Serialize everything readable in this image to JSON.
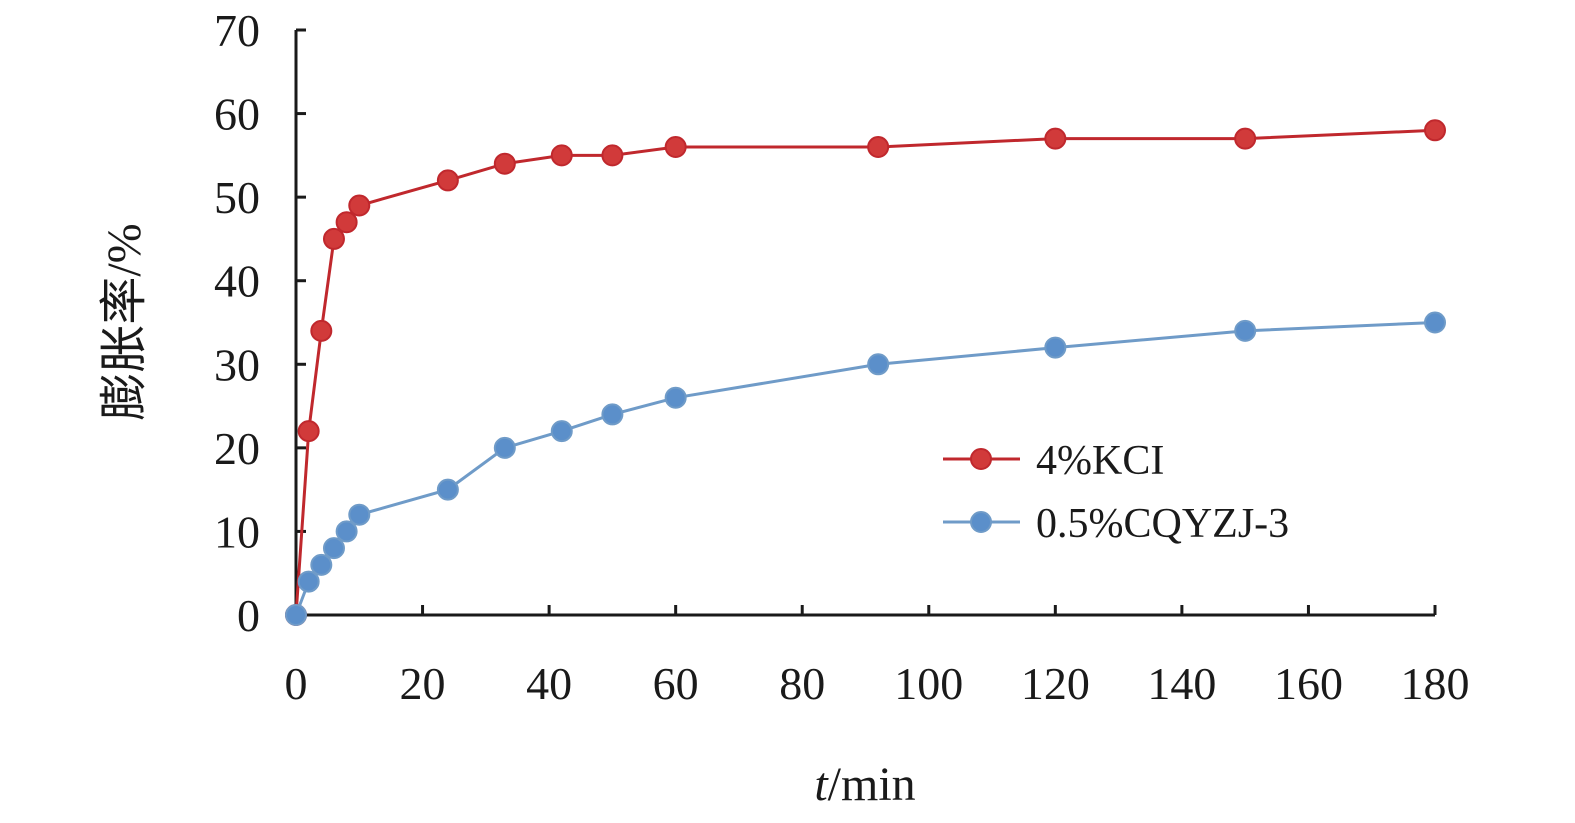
{
  "chart_data": {
    "type": "line",
    "xlabel_italic": "t",
    "xlabel_unit": "/min",
    "ylabel": "膨胀率/%",
    "xlim": [
      0,
      180
    ],
    "ylim": [
      0,
      70
    ],
    "x_ticks": [
      "0",
      "20",
      "40",
      "60",
      "80",
      "100",
      "120",
      "140",
      "160",
      "180"
    ],
    "y_ticks": [
      "0",
      "10",
      "20",
      "30",
      "40",
      "50",
      "60",
      "70"
    ],
    "x_tick_values": [
      0,
      20,
      40,
      60,
      80,
      100,
      120,
      140,
      160,
      180
    ],
    "y_tick_values": [
      0,
      10,
      20,
      30,
      40,
      50,
      60,
      70
    ],
    "grid": false,
    "legend_position": "right-middle",
    "series": [
      {
        "name": "4%KCI",
        "color": "#c0282d",
        "marker_fill": "#d13a3a",
        "x": [
          0,
          2,
          4,
          6,
          8,
          10,
          24,
          33,
          42,
          50,
          60,
          92,
          120,
          150,
          180
        ],
        "y": [
          0,
          22,
          34,
          45,
          47,
          49,
          52,
          54,
          55,
          55,
          56,
          56,
          57,
          57,
          58
        ]
      },
      {
        "name": "0.5%CQYZJ-3",
        "color": "#6f9bc8",
        "marker_fill": "#5b8fca",
        "x": [
          0,
          2,
          4,
          6,
          8,
          10,
          24,
          33,
          42,
          50,
          60,
          92,
          120,
          150,
          180
        ],
        "y": [
          0,
          4,
          6,
          8,
          10,
          12,
          15,
          20,
          22,
          24,
          26,
          30,
          32,
          34,
          35
        ]
      }
    ]
  }
}
